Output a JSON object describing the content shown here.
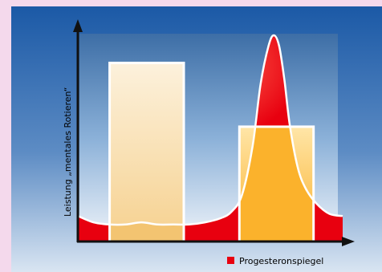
{
  "chart_data": {
    "type": "bar",
    "ylabel": "Leistung „mentales Rotieren“",
    "xlabel": "",
    "legend": {
      "placement": "bottom-right",
      "label": "Progesteronspiegel",
      "color": "#e8000f"
    },
    "grid": false,
    "x_range": [
      0,
      1
    ],
    "y_range": [
      0,
      1
    ],
    "bars": [
      {
        "x_start": 0.12,
        "x_end": 0.4,
        "value": 0.84,
        "fill": "light-gradient"
      },
      {
        "x_start": 0.61,
        "x_end": 0.89,
        "value": 0.54,
        "fill": "orange-gradient"
      }
    ],
    "series": [
      {
        "name": "Progesteronspiegel",
        "type": "area",
        "color": "#e8000f",
        "x": [
          0.0,
          0.06,
          0.12,
          0.18,
          0.24,
          0.3,
          0.36,
          0.42,
          0.48,
          0.54,
          0.58,
          0.62,
          0.66,
          0.69,
          0.72,
          0.74,
          0.76,
          0.78,
          0.8,
          0.83,
          0.86,
          0.9,
          0.95,
          1.0
        ],
        "y": [
          0.12,
          0.09,
          0.08,
          0.08,
          0.09,
          0.08,
          0.08,
          0.08,
          0.09,
          0.11,
          0.14,
          0.22,
          0.45,
          0.74,
          0.92,
          0.97,
          0.92,
          0.76,
          0.55,
          0.35,
          0.25,
          0.18,
          0.13,
          0.12
        ]
      }
    ]
  },
  "colors": {
    "page_background": "#f4d9ec",
    "frame": "#1b59a6",
    "plot_top": "#3b6ba2",
    "plot_bottom": "#e6edf6",
    "axis": "#111111",
    "bar_outline": "#ffffff"
  }
}
